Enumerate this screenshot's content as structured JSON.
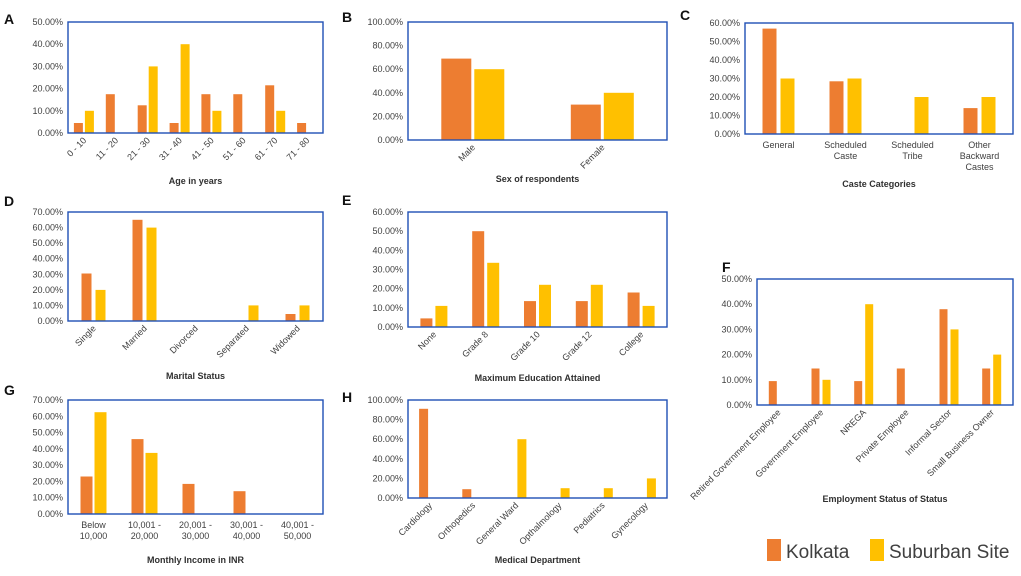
{
  "colors": {
    "kolkata": "#ED7D31",
    "suburban": "#FFC000",
    "frame": "#1F4FB5"
  },
  "legend": {
    "series": [
      "Kolkata",
      "Suburban Site"
    ]
  },
  "chart_data": [
    {
      "panel": "A",
      "type": "bar",
      "title": "",
      "xlabel": "Age in years",
      "ylabel": "",
      "categories": [
        "0 - 10",
        "11 - 20",
        "21 - 30",
        "31 - 40",
        "41 - 50",
        "51 - 60",
        "61 - 70",
        "71 - 80"
      ],
      "series": [
        {
          "name": "Kolkata",
          "values": [
            4.5,
            17.5,
            12.5,
            4.5,
            17.5,
            17.5,
            21.5,
            4.5
          ]
        },
        {
          "name": "Suburban Site",
          "values": [
            10,
            0,
            30,
            40,
            10,
            0,
            10,
            0
          ]
        }
      ],
      "ylim": [
        0,
        50
      ],
      "yticks": [
        "0.00%",
        "10.00%",
        "20.00%",
        "30.00%",
        "40.00%",
        "50.00%"
      ]
    },
    {
      "panel": "B",
      "type": "bar",
      "title": "",
      "xlabel": "Sex of respondents",
      "ylabel": "",
      "categories": [
        "Male",
        "Female"
      ],
      "series": [
        {
          "name": "Kolkata",
          "values": [
            69,
            30
          ]
        },
        {
          "name": "Suburban Site",
          "values": [
            60,
            40
          ]
        }
      ],
      "ylim": [
        0,
        100
      ],
      "yticks": [
        "0.00%",
        "20.00%",
        "40.00%",
        "60.00%",
        "80.00%",
        "100.00%"
      ]
    },
    {
      "panel": "C",
      "type": "bar",
      "title": "",
      "xlabel": "Caste Categories",
      "ylabel": "",
      "categories": [
        "General",
        "Scheduled Caste",
        "Scheduled Tribe",
        "Other Backward Castes"
      ],
      "series": [
        {
          "name": "Kolkata",
          "values": [
            57,
            28.5,
            0,
            14
          ]
        },
        {
          "name": "Suburban Site",
          "values": [
            30,
            30,
            20,
            20
          ]
        }
      ],
      "ylim": [
        0,
        60
      ],
      "yticks": [
        "0.00%",
        "10.00%",
        "20.00%",
        "30.00%",
        "40.00%",
        "50.00%",
        "60.00%"
      ]
    },
    {
      "panel": "D",
      "type": "bar",
      "title": "",
      "xlabel": "Marital Status",
      "ylabel": "",
      "categories": [
        "Single",
        "Married",
        "Divorced",
        "Separated",
        "Widowed"
      ],
      "series": [
        {
          "name": "Kolkata",
          "values": [
            30.5,
            65,
            0,
            0,
            4.5
          ]
        },
        {
          "name": "Suburban Site",
          "values": [
            20,
            60,
            0,
            10,
            10
          ]
        }
      ],
      "ylim": [
        0,
        70
      ],
      "yticks": [
        "0.00%",
        "10.00%",
        "20.00%",
        "30.00%",
        "40.00%",
        "50.00%",
        "60.00%",
        "70.00%"
      ]
    },
    {
      "panel": "E",
      "type": "bar",
      "title": "",
      "xlabel": "Maximum Education Attained",
      "ylabel": "",
      "categories": [
        "None",
        "Grade 8",
        "Grade 10",
        "Grade 12",
        "College"
      ],
      "series": [
        {
          "name": "Kolkata",
          "values": [
            4.5,
            50,
            13.5,
            13.5,
            18
          ]
        },
        {
          "name": "Suburban Site",
          "values": [
            11,
            33.5,
            22,
            22,
            11
          ]
        }
      ],
      "ylim": [
        0,
        60
      ],
      "yticks": [
        "0.00%",
        "10.00%",
        "20.00%",
        "30.00%",
        "40.00%",
        "50.00%",
        "60.00%"
      ]
    },
    {
      "panel": "F",
      "type": "bar",
      "title": "",
      "xlabel": "Employment Status of Status",
      "ylabel": "",
      "categories": [
        "Retired Government Employee",
        "Government Employee",
        "NREGA",
        "Private Employee",
        "Informal Sector",
        "Small Business Owner"
      ],
      "series": [
        {
          "name": "Kolkata",
          "values": [
            9.5,
            14.5,
            9.5,
            14.5,
            38,
            14.5
          ]
        },
        {
          "name": "Suburban Site",
          "values": [
            0,
            10,
            40,
            0,
            30,
            20
          ]
        }
      ],
      "ylim": [
        0,
        50
      ],
      "yticks": [
        "0.00%",
        "10.00%",
        "20.00%",
        "30.00%",
        "40.00%",
        "50.00%"
      ]
    },
    {
      "panel": "G",
      "type": "bar",
      "title": "",
      "xlabel": "Monthly Income in INR",
      "ylabel": "",
      "categories": [
        "Below 10,000",
        "10,001 - 20,000",
        "20,001 - 30,000",
        "30,001 - 40,000",
        "40,001 - 50,000"
      ],
      "series": [
        {
          "name": "Kolkata",
          "values": [
            23,
            46,
            18.5,
            14,
            0
          ]
        },
        {
          "name": "Suburban Site",
          "values": [
            62.5,
            37.5,
            0,
            0,
            0
          ]
        }
      ],
      "ylim": [
        0,
        70
      ],
      "yticks": [
        "0.00%",
        "10.00%",
        "20.00%",
        "30.00%",
        "40.00%",
        "50.00%",
        "60.00%",
        "70.00%"
      ]
    },
    {
      "panel": "H",
      "type": "bar",
      "title": "",
      "xlabel": "Medical Department",
      "ylabel": "",
      "categories": [
        "Cardiology",
        "Orthopedics",
        "General Ward",
        "Opthalmology",
        "Pediatrics",
        "Gynecology"
      ],
      "series": [
        {
          "name": "Kolkata",
          "values": [
            91,
            9,
            0,
            0,
            0,
            0
          ]
        },
        {
          "name": "Suburban Site",
          "values": [
            0,
            0,
            60,
            10,
            10,
            20
          ]
        }
      ],
      "ylim": [
        0,
        100
      ],
      "yticks": [
        "0.00%",
        "20.00%",
        "40.00%",
        "60.00%",
        "80.00%",
        "100.00%"
      ]
    }
  ]
}
